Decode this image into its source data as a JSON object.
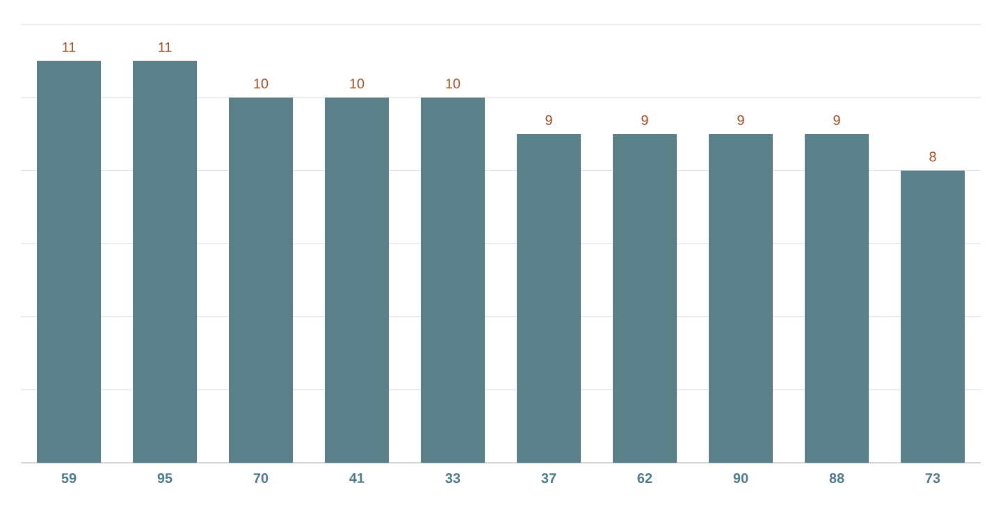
{
  "chart_data": {
    "type": "bar",
    "categories": [
      "59",
      "95",
      "70",
      "41",
      "33",
      "37",
      "62",
      "90",
      "88",
      "73"
    ],
    "values": [
      11,
      11,
      10,
      10,
      10,
      9,
      9,
      9,
      9,
      8
    ],
    "color": "#5a818a",
    "grid": "y",
    "tick_labels": "x",
    "data_labels": true
  }
}
